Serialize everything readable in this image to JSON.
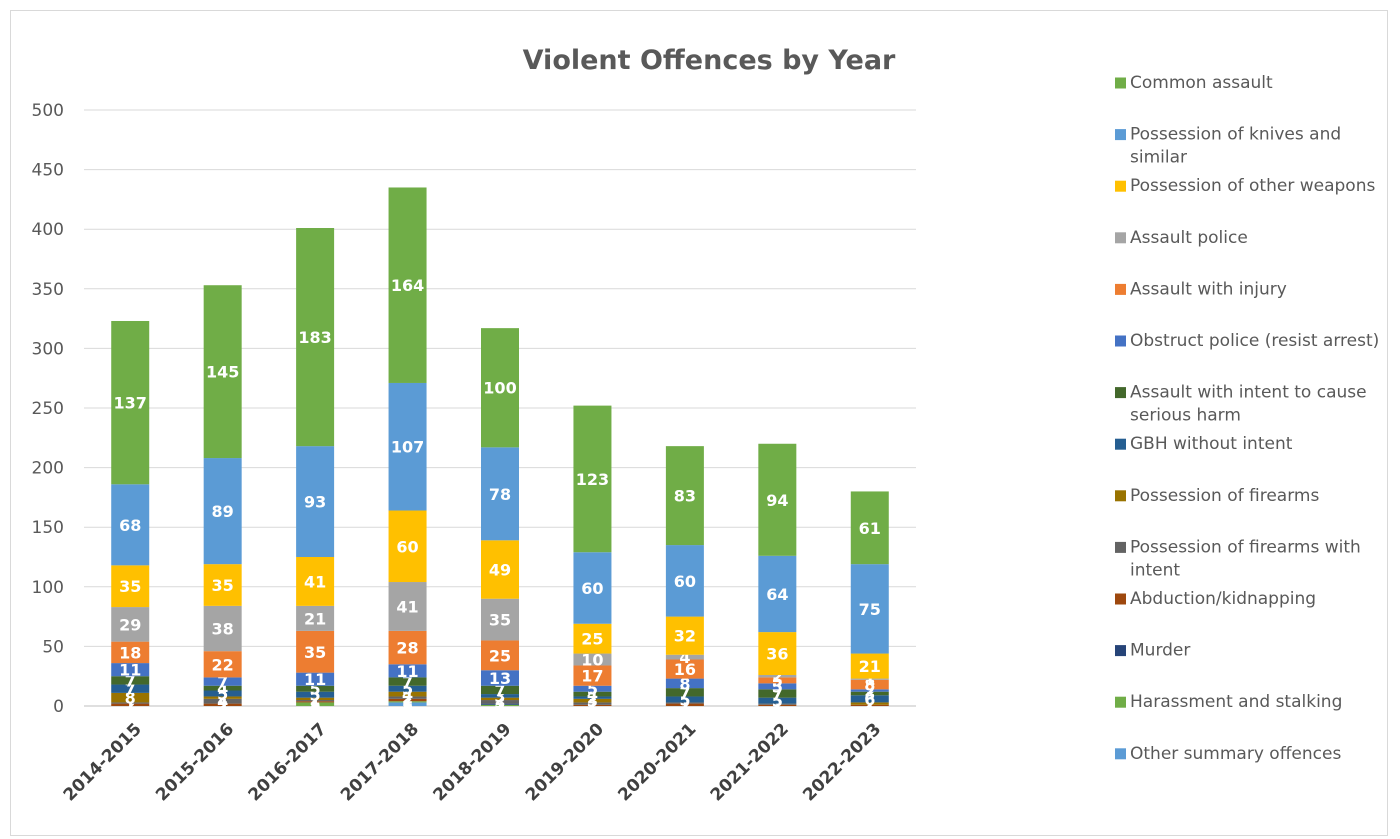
{
  "chart_data": {
    "type": "bar",
    "stacked": true,
    "title": "Violent Offences by Year",
    "xlabel": "",
    "ylabel": "",
    "ylim": [
      0,
      500
    ],
    "yticks": [
      0,
      50,
      100,
      150,
      200,
      250,
      300,
      350,
      400,
      450,
      500
    ],
    "grid": true,
    "legend_position": "right",
    "categories": [
      "2014-2015",
      "2015-2016",
      "2016-2017",
      "2017-2018",
      "2018-2019",
      "2019-2020",
      "2020-2021",
      "2021-2022",
      "2022-2023"
    ],
    "series": [
      {
        "name": "Other summary offences",
        "color": "#5B9BD5",
        "values": [
          0,
          0,
          0,
          3,
          0,
          0,
          0,
          0,
          0
        ]
      },
      {
        "name": "Harassment and stalking",
        "color": "#70AD47",
        "values": [
          0,
          0,
          3,
          1,
          1,
          0,
          0,
          0,
          0
        ]
      },
      {
        "name": "Murder",
        "color": "#264478",
        "values": [
          0,
          0,
          0,
          0,
          1,
          0,
          0,
          0,
          0
        ]
      },
      {
        "name": "Abduction/kidnapping",
        "color": "#9E480E",
        "values": [
          2,
          2,
          1,
          2,
          0,
          1,
          2,
          1,
          1
        ]
      },
      {
        "name": "Possession of firearms with intent",
        "color": "#636363",
        "values": [
          1,
          4,
          1,
          2,
          3,
          2,
          1,
          1,
          0
        ]
      },
      {
        "name": "Possession of firearms",
        "color": "#997300",
        "values": [
          8,
          2,
          2,
          4,
          2,
          3,
          0,
          0,
          2
        ]
      },
      {
        "name": "GBH without intent",
        "color": "#255E91",
        "values": [
          7,
          5,
          5,
          5,
          3,
          2,
          5,
          5,
          6
        ]
      },
      {
        "name": "Assault with intent to cause serious harm",
        "color": "#43682B",
        "values": [
          7,
          4,
          5,
          7,
          7,
          4,
          7,
          7,
          3
        ]
      },
      {
        "name": "Obstruct police (resist arrest)",
        "color": "#4472C4",
        "values": [
          11,
          7,
          11,
          11,
          13,
          5,
          8,
          5,
          2
        ]
      },
      {
        "name": "Assault with injury",
        "color": "#ED7D31",
        "values": [
          18,
          22,
          35,
          28,
          25,
          17,
          16,
          5,
          8
        ]
      },
      {
        "name": "Assault police",
        "color": "#A5A5A5",
        "values": [
          29,
          38,
          21,
          41,
          35,
          10,
          4,
          2,
          1
        ]
      },
      {
        "name": "Possession of other weapons",
        "color": "#FFC000",
        "values": [
          35,
          35,
          41,
          60,
          49,
          25,
          32,
          36,
          21
        ]
      },
      {
        "name": "Possession of knives and similar",
        "color": "#5B9BD5",
        "values": [
          68,
          89,
          93,
          107,
          78,
          60,
          60,
          64,
          75
        ]
      },
      {
        "name": "Common assault",
        "color": "#70AD47",
        "values": [
          137,
          145,
          183,
          164,
          100,
          123,
          83,
          94,
          61
        ]
      }
    ],
    "legend": [
      {
        "label": "Common assault",
        "color": "#70AD47"
      },
      {
        "label": "Possession of knives and similar",
        "color": "#5B9BD5"
      },
      {
        "label": "Possession of other weapons",
        "color": "#FFC000"
      },
      {
        "label": "Assault police",
        "color": "#A5A5A5"
      },
      {
        "label": "Assault with injury",
        "color": "#ED7D31"
      },
      {
        "label": "Obstruct police (resist arrest)",
        "color": "#4472C4"
      },
      {
        "label": "Assault with intent to cause serious harm",
        "color": "#43682B"
      },
      {
        "label": "GBH without intent",
        "color": "#255E91"
      },
      {
        "label": "Possession of firearms",
        "color": "#997300"
      },
      {
        "label": "Possession of firearms with intent",
        "color": "#636363"
      },
      {
        "label": "Abduction/kidnapping",
        "color": "#9E480E"
      },
      {
        "label": "Murder",
        "color": "#264478"
      },
      {
        "label": "Harassment and stalking",
        "color": "#70AD47"
      },
      {
        "label": "Other summary offences",
        "color": "#5B9BD5"
      }
    ]
  }
}
